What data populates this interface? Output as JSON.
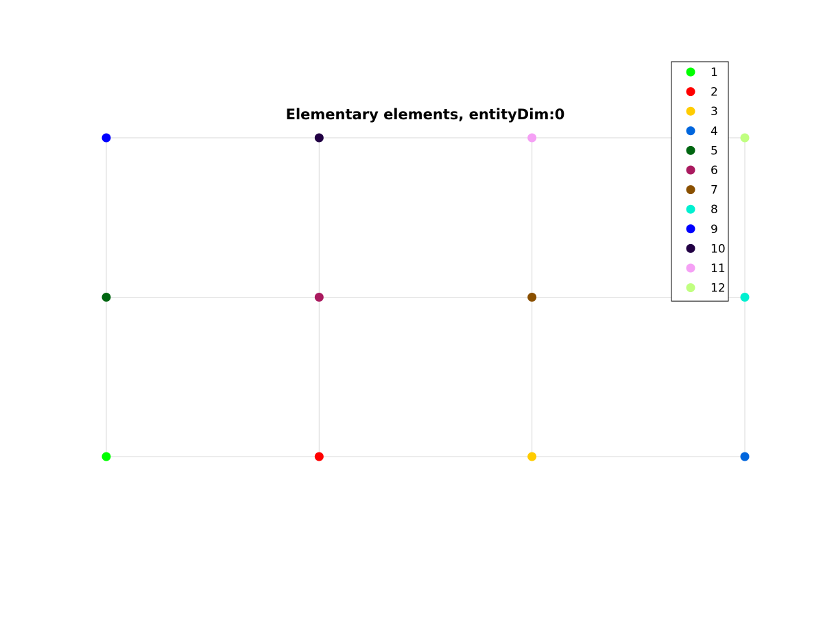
{
  "chart_data": {
    "type": "scatter",
    "title": "Elementary elements, entityDim:0",
    "xlim": [
      0,
      3
    ],
    "ylim": [
      0,
      2
    ],
    "xticks": [
      0,
      1,
      2,
      3
    ],
    "yticks": [
      0,
      1,
      2
    ],
    "grid": true,
    "legend": "upper-right",
    "series": [
      {
        "name": "1",
        "color": "#00ff00",
        "x": [
          0
        ],
        "values": [
          0
        ]
      },
      {
        "name": "2",
        "color": "#ff0000",
        "x": [
          1
        ],
        "values": [
          0
        ]
      },
      {
        "name": "3",
        "color": "#ffcc00",
        "x": [
          2
        ],
        "values": [
          0
        ]
      },
      {
        "name": "4",
        "color": "#0066dd",
        "x": [
          3
        ],
        "values": [
          0
        ]
      },
      {
        "name": "5",
        "color": "#006611",
        "x": [
          0
        ],
        "values": [
          1
        ]
      },
      {
        "name": "6",
        "color": "#aa1a5f",
        "x": [
          1
        ],
        "values": [
          1
        ]
      },
      {
        "name": "7",
        "color": "#8a5000",
        "x": [
          2
        ],
        "values": [
          1
        ]
      },
      {
        "name": "8",
        "color": "#00f0d0",
        "x": [
          3
        ],
        "values": [
          1
        ]
      },
      {
        "name": "9",
        "color": "#0000ff",
        "x": [
          0
        ],
        "values": [
          2
        ]
      },
      {
        "name": "10",
        "color": "#220044",
        "x": [
          1
        ],
        "values": [
          2
        ]
      },
      {
        "name": "11",
        "color": "#f5a0f5",
        "x": [
          2
        ],
        "values": [
          2
        ]
      },
      {
        "name": "12",
        "color": "#c0ff80",
        "x": [
          3
        ],
        "values": [
          2
        ]
      }
    ]
  }
}
